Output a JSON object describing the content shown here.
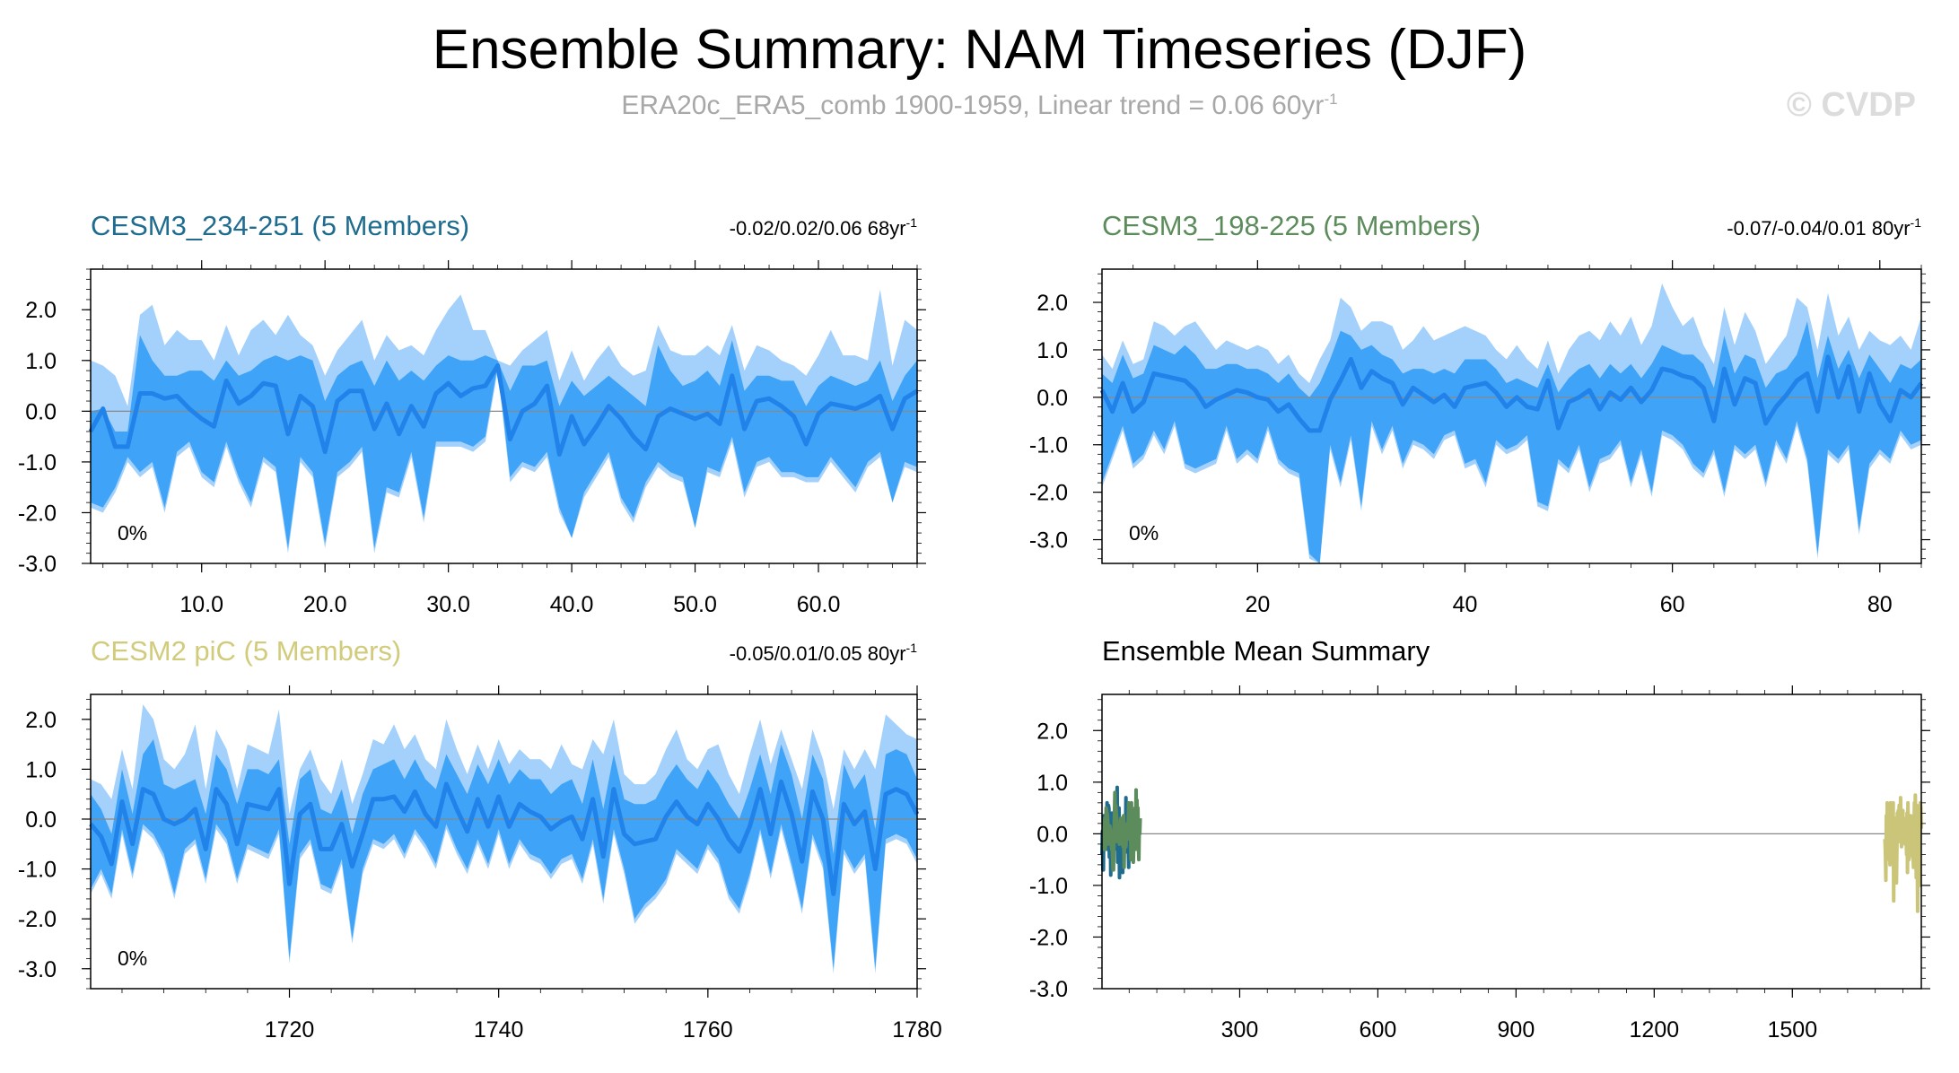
{
  "title": "Ensemble Summary: NAM Timeseries (DJF)",
  "subtitle": {
    "text": "ERA20c_ERA5_comb 1900-1959, Linear trend = 0.06 60yr",
    "superscript": "-1"
  },
  "watermark": "© CVDP",
  "colors": {
    "outer_band": "#a3d1fb",
    "inner_band": "#3fa3f7",
    "mean_line": "#2182ea",
    "zero_line": "#888888"
  },
  "chart_data": [
    {
      "type": "area",
      "title": "CESM3_234-251 (5 Members)",
      "title_color": "#1f6c8f",
      "trend_label": "-0.02/0.02/0.06 68yr",
      "trend_sup": "-1",
      "percent_label": "0%",
      "xlim": [
        1,
        68
      ],
      "ylim": [
        -3.0,
        2.8
      ],
      "xticks": [
        10,
        20,
        30,
        40,
        50,
        60
      ],
      "xtick_labels": [
        "10.0",
        "20.0",
        "30.0",
        "40.0",
        "50.0",
        "60.0"
      ],
      "yticks": [
        2.0,
        1.0,
        0.0,
        -1.0,
        -2.0,
        -3.0
      ],
      "ytick_labels": [
        "2.0",
        "1.0",
        "0.0",
        "-1.0",
        "-2.0",
        "-3.0"
      ],
      "x_start": 1,
      "mean": [
        -0.4,
        0.05,
        -0.7,
        -0.7,
        0.35,
        0.35,
        0.25,
        0.3,
        0.05,
        -0.15,
        -0.3,
        0.6,
        0.15,
        0.3,
        0.55,
        0.5,
        -0.45,
        0.3,
        0.1,
        -0.8,
        0.2,
        0.4,
        0.4,
        -0.35,
        0.15,
        -0.45,
        0.1,
        -0.3,
        0.35,
        0.55,
        0.3,
        0.45,
        0.5,
        0.9,
        -0.55,
        0.0,
        0.15,
        0.5,
        -0.85,
        -0.1,
        -0.65,
        -0.3,
        0.1,
        -0.15,
        -0.5,
        -0.75,
        -0.1,
        0.05,
        -0.05,
        -0.15,
        -0.05,
        -0.25,
        0.7,
        -0.35,
        0.2,
        0.25,
        0.1,
        -0.1,
        -0.65,
        -0.05,
        0.15,
        0.1,
        0.05,
        0.15,
        0.3,
        -0.35,
        0.25,
        0.4
      ],
      "inner_upper": [
        0.0,
        0.05,
        -0.4,
        -0.4,
        1.5,
        1.0,
        0.7,
        0.7,
        0.8,
        0.8,
        0.6,
        1.0,
        0.7,
        0.8,
        1.0,
        1.1,
        1.0,
        1.1,
        1.0,
        0.2,
        0.7,
        0.9,
        1.0,
        0.5,
        1.0,
        0.6,
        0.8,
        0.6,
        0.9,
        1.1,
        1.0,
        1.0,
        1.1,
        1.0,
        0.4,
        0.9,
        0.9,
        1.0,
        0.1,
        0.6,
        0.3,
        0.5,
        0.7,
        0.5,
        0.3,
        0.1,
        1.3,
        0.8,
        0.5,
        0.6,
        0.8,
        0.5,
        1.4,
        0.4,
        0.7,
        0.7,
        0.6,
        0.6,
        0.1,
        0.5,
        0.7,
        0.6,
        0.5,
        0.6,
        1.0,
        0.2,
        0.7,
        1.0
      ],
      "inner_lower": [
        -1.8,
        -1.9,
        -1.5,
        -0.9,
        -1.2,
        -1.0,
        -1.9,
        -0.8,
        -0.6,
        -1.2,
        -1.4,
        -0.6,
        -1.3,
        -1.8,
        -0.9,
        -1.1,
        -2.7,
        -0.9,
        -1.2,
        -2.6,
        -1.2,
        -1.0,
        -0.7,
        -2.7,
        -1.5,
        -1.6,
        -0.8,
        -2.1,
        -0.6,
        -0.6,
        -0.6,
        -0.7,
        -0.5,
        0.9,
        -1.3,
        -1.0,
        -1.1,
        -0.8,
        -1.9,
        -2.5,
        -1.6,
        -1.2,
        -0.8,
        -1.7,
        -2.1,
        -1.4,
        -1.0,
        -1.2,
        -1.3,
        -2.3,
        -1.1,
        -1.2,
        -0.5,
        -1.6,
        -1.0,
        -0.9,
        -1.2,
        -1.2,
        -1.3,
        -1.3,
        -0.9,
        -1.2,
        -1.5,
        -1.0,
        -0.8,
        -1.8,
        -1.0,
        -1.1
      ],
      "outer_upper": [
        1.0,
        0.9,
        0.7,
        0.1,
        1.9,
        2.1,
        1.3,
        1.6,
        1.4,
        1.4,
        1.0,
        1.7,
        1.1,
        1.6,
        1.8,
        1.5,
        1.9,
        1.5,
        1.3,
        0.7,
        1.2,
        1.5,
        1.8,
        1.0,
        1.5,
        1.2,
        1.3,
        1.1,
        1.6,
        2.0,
        2.3,
        1.6,
        1.6,
        1.0,
        0.9,
        1.2,
        1.4,
        1.6,
        0.6,
        1.2,
        0.6,
        1.0,
        1.3,
        0.9,
        0.7,
        0.8,
        1.7,
        1.2,
        1.1,
        1.1,
        1.3,
        1.1,
        1.7,
        0.8,
        1.3,
        1.2,
        1.0,
        0.9,
        0.7,
        1.1,
        1.6,
        1.1,
        1.1,
        1.0,
        2.4,
        0.9,
        1.8,
        1.6
      ],
      "outer_lower": [
        -1.9,
        -2.0,
        -1.6,
        -1.0,
        -1.3,
        -1.1,
        -2.0,
        -0.9,
        -0.7,
        -1.3,
        -1.5,
        -0.7,
        -1.4,
        -1.9,
        -1.0,
        -1.2,
        -2.8,
        -1.0,
        -1.3,
        -2.7,
        -1.3,
        -1.1,
        -0.8,
        -2.8,
        -1.6,
        -1.7,
        -0.9,
        -2.2,
        -0.7,
        -0.7,
        -0.7,
        -0.8,
        -0.6,
        0.8,
        -1.4,
        -1.1,
        -1.2,
        -0.9,
        -2.0,
        -2.5,
        -1.7,
        -1.3,
        -0.9,
        -1.8,
        -2.2,
        -1.5,
        -1.1,
        -1.3,
        -1.4,
        -2.3,
        -1.2,
        -1.3,
        -0.6,
        -1.7,
        -1.1,
        -1.0,
        -1.3,
        -1.3,
        -1.4,
        -1.4,
        -1.0,
        -1.3,
        -1.6,
        -1.1,
        -0.9,
        -1.8,
        -1.1,
        -1.2
      ]
    },
    {
      "type": "area",
      "title": "CESM3_198-225 (5 Members)",
      "title_color": "#5d8c5c",
      "trend_label": "-0.07/-0.04/0.01 80yr",
      "trend_sup": "-1",
      "percent_label": "0%",
      "xlim": [
        5,
        84
      ],
      "ylim": [
        -3.5,
        2.7
      ],
      "xticks": [
        20,
        40,
        60,
        80
      ],
      "xtick_labels": [
        "20",
        "40",
        "60",
        "80"
      ],
      "yticks": [
        2.0,
        1.0,
        0.0,
        -1.0,
        -2.0,
        -3.0
      ],
      "ytick_labels": [
        "2.0",
        "1.0",
        "0.0",
        "-1.0",
        "-2.0",
        "-3.0"
      ],
      "x_start": 5,
      "mean": [
        0.15,
        -0.3,
        0.3,
        -0.3,
        -0.1,
        0.5,
        0.45,
        0.4,
        0.35,
        0.15,
        -0.2,
        -0.05,
        0.05,
        0.15,
        0.1,
        0.0,
        -0.05,
        -0.3,
        -0.15,
        -0.45,
        -0.7,
        -0.7,
        -0.05,
        0.35,
        0.8,
        0.2,
        0.55,
        0.4,
        0.3,
        -0.15,
        0.2,
        0.05,
        -0.1,
        0.05,
        -0.2,
        0.2,
        0.25,
        0.3,
        0.1,
        -0.2,
        0.0,
        -0.2,
        -0.25,
        0.35,
        -0.65,
        -0.1,
        0.0,
        0.15,
        -0.25,
        0.1,
        -0.05,
        0.2,
        -0.1,
        0.15,
        0.6,
        0.55,
        0.45,
        0.4,
        0.2,
        -0.5,
        0.6,
        -0.15,
        0.4,
        0.3,
        -0.55,
        -0.2,
        0.05,
        0.35,
        0.5,
        -0.3,
        0.85,
        0.0,
        0.65,
        -0.3,
        0.5,
        -0.15,
        -0.5,
        0.15,
        0.0,
        0.3
      ],
      "inner_upper": [
        0.5,
        0.3,
        0.9,
        0.4,
        0.5,
        1.1,
        1.0,
        0.9,
        1.1,
        0.9,
        0.6,
        0.6,
        0.7,
        0.7,
        0.6,
        0.6,
        0.5,
        0.3,
        0.5,
        0.2,
        0.0,
        0.3,
        0.8,
        1.4,
        1.3,
        1.0,
        1.1,
        0.9,
        0.8,
        0.5,
        0.6,
        0.6,
        0.5,
        0.6,
        0.5,
        0.8,
        0.8,
        0.8,
        0.6,
        0.3,
        0.4,
        0.3,
        0.2,
        0.7,
        0.1,
        0.4,
        0.6,
        0.7,
        0.4,
        0.7,
        0.5,
        0.7,
        0.4,
        0.7,
        1.1,
        1.0,
        0.9,
        0.9,
        0.7,
        0.2,
        1.3,
        0.5,
        0.9,
        0.8,
        0.2,
        0.5,
        0.6,
        0.9,
        1.6,
        0.4,
        1.3,
        0.6,
        1.0,
        0.4,
        0.9,
        0.6,
        0.3,
        0.7,
        0.6,
        0.8
      ],
      "inner_lower": [
        -1.8,
        -1.2,
        -0.6,
        -1.4,
        -1.2,
        -0.7,
        -1.1,
        -0.5,
        -1.4,
        -1.5,
        -1.4,
        -1.3,
        -0.6,
        -1.3,
        -1.1,
        -1.3,
        -0.6,
        -1.3,
        -1.5,
        -1.6,
        -3.3,
        -3.5,
        -1.0,
        -1.8,
        -0.8,
        -2.3,
        -0.5,
        -1.1,
        -0.6,
        -1.4,
        -0.9,
        -1.0,
        -1.2,
        -0.8,
        -0.7,
        -1.4,
        -1.3,
        -1.8,
        -0.9,
        -1.1,
        -1.0,
        -0.8,
        -2.2,
        -2.3,
        -1.3,
        -1.5,
        -1.0,
        -1.9,
        -1.3,
        -1.2,
        -0.9,
        -1.8,
        -1.1,
        -2.0,
        -0.7,
        -0.8,
        -1.0,
        -1.4,
        -1.6,
        -1.1,
        -2.0,
        -1.0,
        -1.2,
        -1.0,
        -1.8,
        -0.9,
        -1.3,
        -0.5,
        -1.3,
        -3.3,
        -1.1,
        -1.3,
        -1.0,
        -2.8,
        -1.4,
        -1.1,
        -1.3,
        -0.7,
        -1.0,
        -0.9
      ],
      "outer_upper": [
        0.9,
        0.6,
        1.2,
        0.7,
        0.8,
        1.6,
        1.5,
        1.3,
        1.5,
        1.6,
        1.3,
        1.0,
        1.2,
        1.1,
        1.0,
        1.1,
        1.0,
        0.7,
        0.9,
        0.5,
        0.3,
        0.8,
        1.2,
        2.1,
        1.9,
        1.4,
        1.6,
        1.6,
        1.5,
        1.0,
        1.2,
        1.5,
        1.2,
        1.3,
        1.4,
        1.5,
        1.4,
        1.3,
        1.0,
        0.8,
        1.1,
        0.8,
        0.6,
        1.2,
        0.5,
        1.0,
        1.3,
        1.4,
        1.2,
        1.6,
        1.3,
        1.7,
        1.1,
        1.5,
        2.4,
        1.9,
        1.5,
        1.7,
        1.1,
        0.7,
        1.9,
        1.1,
        1.8,
        1.4,
        0.7,
        1.0,
        1.3,
        2.1,
        1.9,
        1.0,
        2.2,
        1.3,
        1.7,
        1.0,
        1.4,
        1.2,
        1.1,
        1.3,
        1.0,
        1.7
      ],
      "outer_lower": [
        -1.9,
        -1.3,
        -0.7,
        -1.5,
        -1.3,
        -0.8,
        -1.2,
        -0.6,
        -1.5,
        -1.6,
        -1.5,
        -1.4,
        -0.7,
        -1.4,
        -1.2,
        -1.4,
        -0.7,
        -1.4,
        -1.6,
        -1.7,
        -3.4,
        -3.5,
        -1.1,
        -1.9,
        -0.9,
        -2.4,
        -0.6,
        -1.2,
        -0.7,
        -1.5,
        -1.0,
        -1.1,
        -1.3,
        -0.9,
        -0.8,
        -1.5,
        -1.4,
        -1.9,
        -1.0,
        -1.2,
        -1.1,
        -0.9,
        -2.3,
        -2.4,
        -1.4,
        -1.6,
        -1.1,
        -2.0,
        -1.4,
        -1.3,
        -1.0,
        -1.9,
        -1.2,
        -2.1,
        -0.8,
        -0.9,
        -1.1,
        -1.5,
        -1.7,
        -1.2,
        -2.1,
        -1.1,
        -1.3,
        -1.1,
        -1.9,
        -1.0,
        -1.4,
        -0.6,
        -1.4,
        -3.4,
        -1.2,
        -1.4,
        -1.1,
        -2.9,
        -1.5,
        -1.2,
        -1.4,
        -0.8,
        -1.1,
        -1.0
      ]
    },
    {
      "type": "area",
      "title": "CESM2 piC (5 Members)",
      "title_color": "#d1cb7c",
      "trend_label": "-0.05/0.01/0.05 80yr",
      "trend_sup": "-1",
      "percent_label": "0%",
      "xlim": [
        1701,
        1780
      ],
      "ylim": [
        -3.4,
        2.5
      ],
      "xticks": [
        1720,
        1740,
        1760,
        1780
      ],
      "xtick_labels": [
        "1720",
        "1740",
        "1760",
        "1780"
      ],
      "yticks": [
        2.0,
        1.0,
        0.0,
        -1.0,
        -2.0,
        -3.0
      ],
      "ytick_labels": [
        "2.0",
        "1.0",
        "0.0",
        "-1.0",
        "-2.0",
        "-3.0"
      ],
      "x_start": 1701,
      "mean": [
        -0.1,
        -0.35,
        -0.9,
        0.35,
        -0.5,
        0.6,
        0.5,
        0.0,
        -0.1,
        0.0,
        0.2,
        -0.6,
        0.6,
        0.3,
        -0.5,
        0.3,
        0.25,
        0.2,
        0.6,
        -1.3,
        0.1,
        0.3,
        -0.6,
        -0.6,
        -0.1,
        -0.95,
        -0.3,
        0.4,
        0.4,
        0.45,
        0.15,
        0.55,
        0.1,
        -0.15,
        0.7,
        0.2,
        -0.25,
        0.4,
        -0.15,
        0.45,
        -0.15,
        0.3,
        0.15,
        0.05,
        -0.2,
        -0.05,
        0.05,
        -0.4,
        0.4,
        -0.75,
        0.6,
        -0.3,
        -0.5,
        -0.45,
        -0.4,
        0.05,
        0.35,
        0.05,
        -0.1,
        0.3,
        0.0,
        -0.4,
        -0.65,
        -0.15,
        0.6,
        -0.3,
        0.75,
        0.1,
        -0.85,
        0.55,
        0.0,
        -1.5,
        0.3,
        -0.1,
        0.15,
        -1.0,
        0.5,
        0.6,
        0.5,
        0.1
      ],
      "inner_upper": [
        0.5,
        0.2,
        -0.3,
        1.0,
        0.1,
        1.3,
        1.6,
        0.7,
        0.6,
        0.7,
        0.8,
        0.1,
        1.3,
        1.0,
        0.3,
        1.0,
        1.0,
        0.9,
        1.2,
        -0.5,
        0.8,
        1.0,
        0.2,
        0.1,
        0.6,
        -0.3,
        0.5,
        1.0,
        1.1,
        1.2,
        0.8,
        1.2,
        0.8,
        0.6,
        1.3,
        0.9,
        0.5,
        1.1,
        0.7,
        1.2,
        0.7,
        1.0,
        0.8,
        0.8,
        0.5,
        0.7,
        0.8,
        0.3,
        1.2,
        0.2,
        1.3,
        0.4,
        0.3,
        0.3,
        0.4,
        0.8,
        1.1,
        0.8,
        0.6,
        1.0,
        0.7,
        0.3,
        0.0,
        0.6,
        1.3,
        0.5,
        1.5,
        0.9,
        0.0,
        1.3,
        0.8,
        -0.7,
        1.1,
        0.6,
        0.9,
        -0.2,
        1.3,
        1.4,
        1.3,
        0.8
      ],
      "inner_lower": [
        -1.4,
        -1.0,
        -1.5,
        -0.2,
        -1.1,
        -0.1,
        -0.3,
        -0.7,
        -1.5,
        -0.6,
        -0.4,
        -1.2,
        -0.1,
        -0.4,
        -1.2,
        -0.5,
        -0.6,
        -0.7,
        -0.2,
        -2.8,
        -0.7,
        -0.4,
        -1.3,
        -1.4,
        -0.8,
        -2.4,
        -1.0,
        -0.4,
        -0.5,
        -0.3,
        -0.7,
        -0.2,
        -0.5,
        -0.9,
        -0.1,
        -0.6,
        -1.0,
        -0.4,
        -0.9,
        -0.2,
        -0.9,
        -0.4,
        -0.7,
        -0.8,
        -1.1,
        -0.8,
        -0.7,
        -1.2,
        -0.4,
        -1.6,
        -0.2,
        -1.0,
        -2.0,
        -1.7,
        -1.5,
        -1.2,
        -0.6,
        -0.8,
        -1.0,
        -0.5,
        -0.8,
        -1.5,
        -1.8,
        -1.1,
        -0.2,
        -1.1,
        -0.1,
        -0.9,
        -1.8,
        -0.3,
        -0.9,
        -3.0,
        -0.6,
        -1.0,
        -0.7,
        -3.0,
        -0.4,
        -0.3,
        -0.4,
        -0.8
      ],
      "outer_upper": [
        0.8,
        0.7,
        0.4,
        1.4,
        0.6,
        2.3,
        2.0,
        1.2,
        1.0,
        1.3,
        1.9,
        0.6,
        1.8,
        1.4,
        0.6,
        1.5,
        1.4,
        1.3,
        2.2,
        0.1,
        1.0,
        1.4,
        0.8,
        0.5,
        1.2,
        0.3,
        0.9,
        1.6,
        1.5,
        1.9,
        1.4,
        1.7,
        1.2,
        1.0,
        2.0,
        1.4,
        0.9,
        1.5,
        1.0,
        1.6,
        1.1,
        1.4,
        1.2,
        1.2,
        1.0,
        1.5,
        1.1,
        1.0,
        1.6,
        1.3,
        2.0,
        0.9,
        0.7,
        0.7,
        0.9,
        1.4,
        1.8,
        1.2,
        1.0,
        1.4,
        1.5,
        0.9,
        0.5,
        1.3,
        2.0,
        1.1,
        1.8,
        1.2,
        0.6,
        1.8,
        1.2,
        0.2,
        1.4,
        1.0,
        1.4,
        1.0,
        2.1,
        1.9,
        1.7,
        1.6
      ],
      "outer_lower": [
        -1.5,
        -1.1,
        -1.6,
        -0.3,
        -1.2,
        -0.2,
        -0.4,
        -0.8,
        -1.6,
        -0.7,
        -0.5,
        -1.3,
        -0.2,
        -0.5,
        -1.3,
        -0.6,
        -0.7,
        -0.8,
        -0.3,
        -2.9,
        -0.8,
        -0.5,
        -1.4,
        -1.5,
        -0.9,
        -2.5,
        -1.1,
        -0.5,
        -0.6,
        -0.4,
        -0.8,
        -0.3,
        -0.6,
        -1.0,
        -0.2,
        -0.7,
        -1.1,
        -0.5,
        -1.0,
        -0.3,
        -1.0,
        -0.5,
        -0.8,
        -0.9,
        -1.2,
        -0.9,
        -0.8,
        -1.3,
        -0.5,
        -1.7,
        -0.3,
        -1.1,
        -2.1,
        -1.8,
        -1.6,
        -1.3,
        -0.7,
        -0.9,
        -1.1,
        -0.6,
        -0.9,
        -1.6,
        -1.9,
        -1.2,
        -0.3,
        -1.2,
        -0.2,
        -1.0,
        -1.9,
        -0.4,
        -1.0,
        -3.1,
        -0.7,
        -1.1,
        -0.8,
        -3.1,
        -0.5,
        -0.4,
        -0.5,
        -0.9
      ]
    },
    {
      "type": "line",
      "title": "Ensemble Mean Summary",
      "title_color": "#000000",
      "xlim": [
        1,
        1780
      ],
      "ylim": [
        -3.0,
        2.7
      ],
      "xticks": [
        300,
        600,
        900,
        1200,
        1500
      ],
      "xtick_labels": [
        "300",
        "600",
        "900",
        "1200",
        "1500"
      ],
      "yticks": [
        2.0,
        1.0,
        0.0,
        -1.0,
        -2.0,
        -3.0
      ],
      "ytick_labels": [
        "2.0",
        "1.0",
        "0.0",
        "-1.0",
        "-2.0",
        "-3.0"
      ],
      "series": [
        {
          "name": "CESM3_234-251",
          "color": "#1f6c8f",
          "source_panel": 0,
          "x_start": 1,
          "ymin": -0.9,
          "ymax": 1.0
        },
        {
          "name": "CESM3_198-225",
          "color": "#5d8c5c",
          "source_panel": 1,
          "x_start": 5,
          "ymin": -0.8,
          "ymax": 0.9
        },
        {
          "name": "CESM2 piC",
          "color": "#cbc579",
          "source_panel": 2,
          "x_start": 1701,
          "ymin": -1.4,
          "ymax": 0.9
        }
      ]
    }
  ]
}
